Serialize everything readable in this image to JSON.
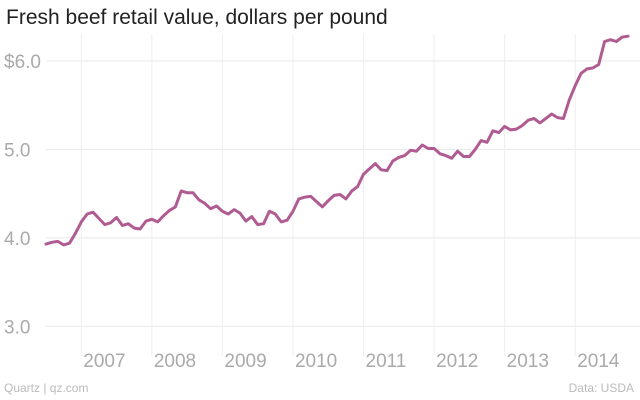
{
  "chart_data": {
    "type": "line",
    "title": "Fresh beef retail value, dollars per pound",
    "xlabel": "",
    "ylabel": "",
    "ylim": [
      2.8,
      6.35
    ],
    "y_ticks": [
      {
        "value": 3.0,
        "label": "3.0"
      },
      {
        "value": 4.0,
        "label": "4.0"
      },
      {
        "value": 5.0,
        "label": "5.0"
      },
      {
        "value": 6.0,
        "label": "$6.0"
      }
    ],
    "x_ticks": [
      {
        "value": 2007,
        "label": "2007"
      },
      {
        "value": 2008,
        "label": "2008"
      },
      {
        "value": 2009,
        "label": "2009"
      },
      {
        "value": 2010,
        "label": "2010"
      },
      {
        "value": 2011,
        "label": "2011"
      },
      {
        "value": 2012,
        "label": "2012"
      },
      {
        "value": 2013,
        "label": "2013"
      },
      {
        "value": 2014,
        "label": "2014"
      }
    ],
    "x_range": [
      "2006-07",
      "2014-11"
    ],
    "grid": true,
    "line_color": "#b05c92",
    "series": [
      {
        "points": [
          [
            "2006-07",
            3.93
          ],
          [
            "2006-08",
            3.95
          ],
          [
            "2006-09",
            3.96
          ],
          [
            "2006-10",
            3.92
          ],
          [
            "2006-11",
            3.94
          ],
          [
            "2006-12",
            4.05
          ],
          [
            "2007-01",
            4.18
          ],
          [
            "2007-02",
            4.27
          ],
          [
            "2007-03",
            4.29
          ],
          [
            "2007-04",
            4.22
          ],
          [
            "2007-05",
            4.15
          ],
          [
            "2007-06",
            4.17
          ],
          [
            "2007-07",
            4.23
          ],
          [
            "2007-08",
            4.14
          ],
          [
            "2007-09",
            4.16
          ],
          [
            "2007-10",
            4.11
          ],
          [
            "2007-11",
            4.1
          ],
          [
            "2007-12",
            4.19
          ],
          [
            "2008-01",
            4.21
          ],
          [
            "2008-02",
            4.18
          ],
          [
            "2008-03",
            4.25
          ],
          [
            "2008-04",
            4.31
          ],
          [
            "2008-05",
            4.35
          ],
          [
            "2008-06",
            4.53
          ],
          [
            "2008-07",
            4.51
          ],
          [
            "2008-08",
            4.51
          ],
          [
            "2008-09",
            4.43
          ],
          [
            "2008-10",
            4.39
          ],
          [
            "2008-11",
            4.33
          ],
          [
            "2008-12",
            4.36
          ],
          [
            "2009-01",
            4.3
          ],
          [
            "2009-02",
            4.27
          ],
          [
            "2009-03",
            4.32
          ],
          [
            "2009-04",
            4.28
          ],
          [
            "2009-05",
            4.19
          ],
          [
            "2009-06",
            4.24
          ],
          [
            "2009-07",
            4.15
          ],
          [
            "2009-08",
            4.16
          ],
          [
            "2009-09",
            4.3
          ],
          [
            "2009-10",
            4.27
          ],
          [
            "2009-11",
            4.18
          ],
          [
            "2009-12",
            4.2
          ],
          [
            "2010-01",
            4.3
          ],
          [
            "2010-02",
            4.44
          ],
          [
            "2010-03",
            4.46
          ],
          [
            "2010-04",
            4.47
          ],
          [
            "2010-05",
            4.41
          ],
          [
            "2010-06",
            4.35
          ],
          [
            "2010-07",
            4.42
          ],
          [
            "2010-08",
            4.48
          ],
          [
            "2010-09",
            4.49
          ],
          [
            "2010-10",
            4.44
          ],
          [
            "2010-11",
            4.53
          ],
          [
            "2010-12",
            4.58
          ],
          [
            "2011-01",
            4.72
          ],
          [
            "2011-02",
            4.78
          ],
          [
            "2011-03",
            4.84
          ],
          [
            "2011-04",
            4.77
          ],
          [
            "2011-05",
            4.76
          ],
          [
            "2011-06",
            4.87
          ],
          [
            "2011-07",
            4.91
          ],
          [
            "2011-08",
            4.93
          ],
          [
            "2011-09",
            4.99
          ],
          [
            "2011-10",
            4.98
          ],
          [
            "2011-11",
            5.05
          ],
          [
            "2011-12",
            5.01
          ],
          [
            "2012-01",
            5.01
          ],
          [
            "2012-02",
            4.95
          ],
          [
            "2012-03",
            4.93
          ],
          [
            "2012-04",
            4.9
          ],
          [
            "2012-05",
            4.98
          ],
          [
            "2012-06",
            4.92
          ],
          [
            "2012-07",
            4.92
          ],
          [
            "2012-08",
            5.0
          ],
          [
            "2012-09",
            5.1
          ],
          [
            "2012-10",
            5.08
          ],
          [
            "2012-11",
            5.21
          ],
          [
            "2012-12",
            5.19
          ],
          [
            "2013-01",
            5.26
          ],
          [
            "2013-02",
            5.22
          ],
          [
            "2013-03",
            5.23
          ],
          [
            "2013-04",
            5.27
          ],
          [
            "2013-05",
            5.33
          ],
          [
            "2013-06",
            5.35
          ],
          [
            "2013-07",
            5.3
          ],
          [
            "2013-08",
            5.35
          ],
          [
            "2013-09",
            5.4
          ],
          [
            "2013-10",
            5.36
          ],
          [
            "2013-11",
            5.35
          ],
          [
            "2013-12",
            5.56
          ],
          [
            "2014-01",
            5.72
          ],
          [
            "2014-02",
            5.86
          ],
          [
            "2014-03",
            5.91
          ],
          [
            "2014-04",
            5.92
          ],
          [
            "2014-05",
            5.96
          ],
          [
            "2014-06",
            6.22
          ],
          [
            "2014-07",
            6.24
          ],
          [
            "2014-08",
            6.22
          ],
          [
            "2014-09",
            6.27
          ],
          [
            "2014-10",
            6.28
          ]
        ]
      }
    ]
  },
  "footer": {
    "source_left": "Quartz | qz.com",
    "source_right": "Data: USDA"
  }
}
